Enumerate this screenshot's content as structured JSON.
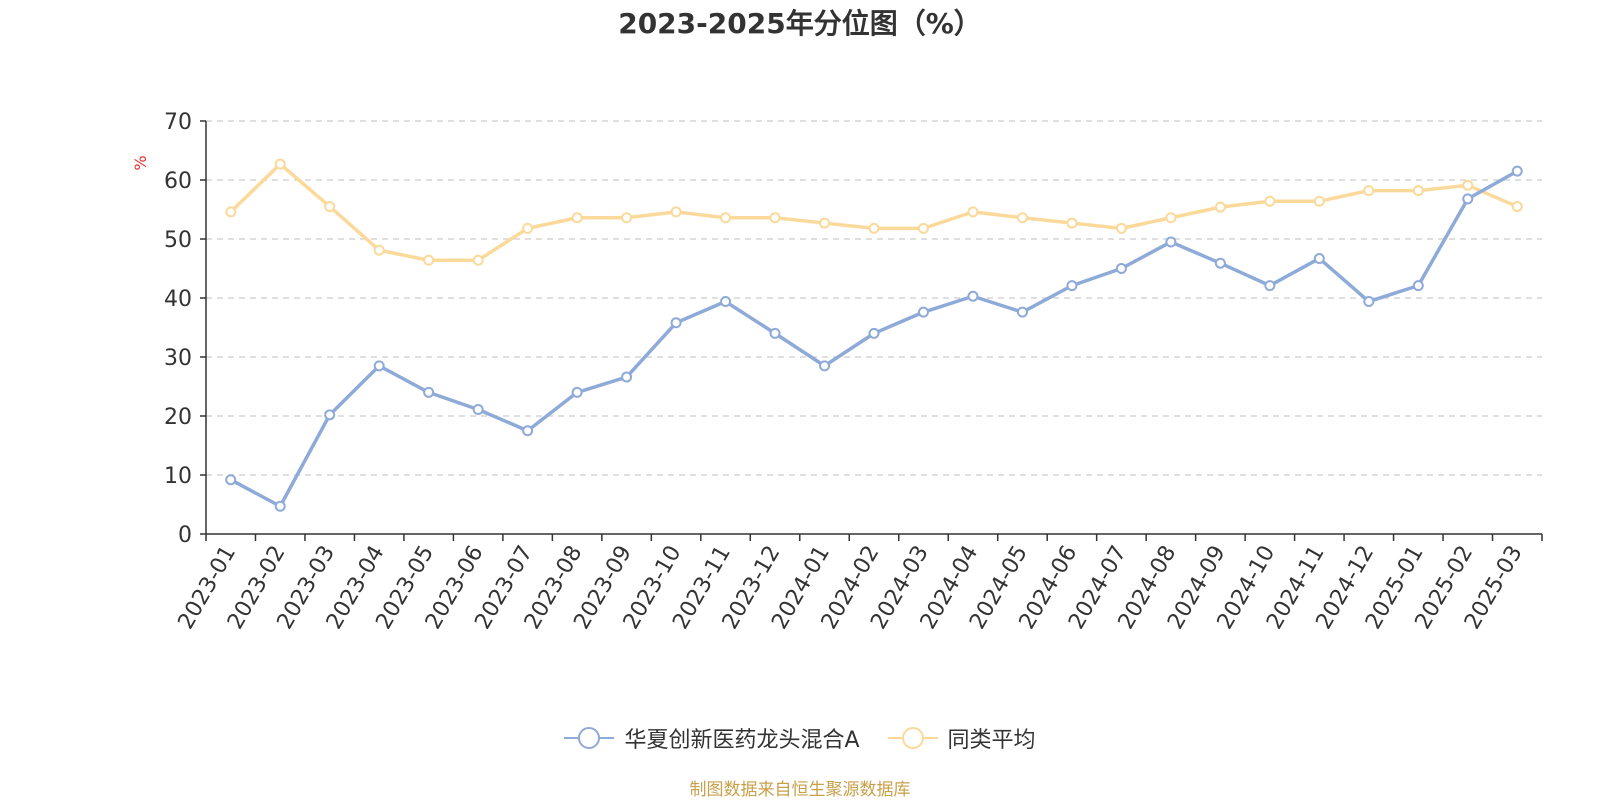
{
  "chart_data": {
    "type": "line",
    "title": "2023-2025年分位图（%）",
    "ylabel": "%",
    "xlabel": "",
    "ylim": [
      0,
      70
    ],
    "yticks": [
      0,
      10,
      20,
      30,
      40,
      50,
      60,
      70
    ],
    "grid": true,
    "legend_position": "bottom",
    "categories": [
      "2023-01",
      "2023-02",
      "2023-03",
      "2023-04",
      "2023-05",
      "2023-06",
      "2023-07",
      "2023-08",
      "2023-09",
      "2023-10",
      "2023-11",
      "2023-12",
      "2024-01",
      "2024-02",
      "2024-03",
      "2024-04",
      "2024-05",
      "2024-06",
      "2024-07",
      "2024-08",
      "2024-09",
      "2024-10",
      "2024-11",
      "2024-12",
      "2025-01",
      "2025-02",
      "2025-03"
    ],
    "series": [
      {
        "name": "华夏创新医药龙头混合A",
        "color": "#8eaad8",
        "values": [
          9.2,
          4.7,
          20.2,
          28.5,
          24.0,
          21.1,
          17.5,
          24.0,
          26.6,
          35.8,
          39.4,
          34.0,
          28.5,
          34.0,
          37.6,
          40.3,
          37.6,
          42.1,
          45.0,
          49.5,
          45.9,
          42.1,
          46.7,
          39.4,
          42.1,
          56.8,
          61.5
        ]
      },
      {
        "name": "同类平均",
        "color": "#fbd99a",
        "values": [
          54.6,
          62.7,
          55.5,
          48.1,
          46.4,
          46.4,
          51.8,
          53.6,
          53.6,
          54.6,
          53.6,
          53.6,
          52.7,
          51.8,
          51.8,
          54.6,
          53.6,
          52.7,
          51.8,
          53.6,
          55.4,
          56.4,
          56.4,
          58.2,
          58.2,
          59.1,
          55.5
        ]
      }
    ]
  },
  "source": "制图数据来自恒生聚源数据库"
}
